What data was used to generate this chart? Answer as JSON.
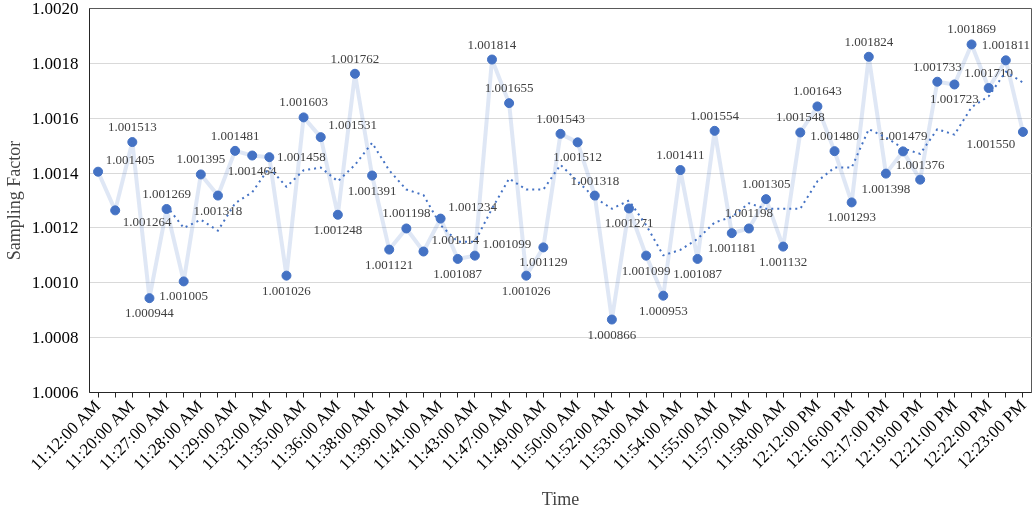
{
  "chart_data": {
    "type": "line",
    "xlabel": "Time",
    "ylabel": "Sampling Factor",
    "categories": [
      "11:12:00 AM",
      null,
      "11:20:00 AM",
      null,
      "11:27:00 AM",
      null,
      "11:28:00 AM",
      null,
      "11:29:00 AM",
      null,
      "11:32:00 AM",
      null,
      "11:35:00 AM",
      null,
      "11:36:00 AM",
      null,
      "11:38:00 AM",
      null,
      "11:39:00 AM",
      null,
      "11:41:00 AM",
      null,
      "11:43:00 AM",
      null,
      "11:47:00 AM",
      null,
      "11:49:00 AM",
      null,
      "11:50:00 AM",
      null,
      "11:52:00 AM",
      null,
      "11:53:00 AM",
      null,
      "11:54:00 AM",
      null,
      "11:55:00 AM",
      null,
      "11:57:00 AM",
      null,
      "11:58:00 AM",
      null,
      "12:12:00 PM",
      null,
      "12:16:00 PM",
      null,
      "12:17:00 PM",
      null,
      "12:19:00 PM",
      null,
      "12:21:00 PM",
      null,
      "12:22:00 PM",
      null,
      "12:23:00 PM"
    ],
    "series": [
      {
        "color": "#4472c4",
        "marker": "circle",
        "line_style": "solid",
        "values": [
          1.001405,
          1.001264,
          1.001513,
          1.000944,
          1.001269,
          1.001005,
          1.001395,
          1.001318,
          1.001481,
          1.001464,
          1.001458,
          1.001026,
          1.001603,
          1.001531,
          1.001248,
          1.001762,
          1.001391,
          1.001121,
          1.001198,
          1.001114,
          1.001234,
          1.001087,
          1.001099,
          1.001814,
          1.001655,
          1.001026,
          1.001129,
          1.001543,
          1.001512,
          1.001318,
          1.000866,
          1.001271,
          1.001099,
          1.000953,
          1.001411,
          1.001087,
          1.001554,
          1.001181,
          1.001198,
          1.001305,
          1.001132,
          1.001548,
          1.001643,
          1.00148,
          1.001293,
          1.001824,
          1.001398,
          1.001479,
          1.001376,
          1.001733,
          1.001723,
          1.001869,
          1.00171,
          1.001811,
          1.00155
        ],
        "value_labels": [
          "1.001405",
          "1.001264",
          "1.001513",
          "1.000944",
          "1.001269",
          "1.001005",
          "1.001395",
          "1.001318",
          "1.001481",
          "1.001464",
          "1.001458",
          "1.001026",
          "1.001603",
          "1.001531",
          "1.001248",
          "1.001762",
          "1.001391",
          "1.001121",
          "1.001198",
          "1.001114",
          "1.001234",
          "1.001087",
          "1.001099",
          "1.001814",
          "1.001655",
          "1.001026",
          "1.001129",
          "1.001543",
          "1.001512",
          "1.001318",
          "1.000866",
          "1.001271",
          "1.001099",
          "1.000953",
          "1.001411",
          "1.001087",
          "1.001554",
          "1.001181",
          "1.001198",
          "1.001305",
          "1.001132",
          "1.001548",
          "1.001643",
          "1.001480",
          "1.001293",
          "1.001824",
          "1.001398",
          "1.001479",
          "1.001376",
          "1.001733",
          "1.001723",
          "1.001869",
          "1.001710",
          "1.001811",
          "1.001550"
        ]
      },
      {
        "color": "#4472c4",
        "marker": "none",
        "line_style": "dotted",
        "values": [
          null,
          null,
          null,
          null,
          1.00128,
          1.0012,
          1.00123,
          1.00119,
          1.00129,
          1.00133,
          1.00142,
          1.00135,
          1.00141,
          1.00142,
          1.00137,
          1.00143,
          1.00151,
          1.00141,
          1.00134,
          1.00132,
          1.00121,
          1.00115,
          1.00115,
          1.00127,
          1.00138,
          1.00134,
          1.00134,
          1.00143,
          1.00137,
          1.00131,
          1.00127,
          1.0013,
          1.00121,
          1.0011,
          1.00112,
          1.00116,
          1.00122,
          1.00124,
          1.00129,
          1.00127,
          1.00127,
          1.00127,
          1.00137,
          1.00142,
          1.00142,
          1.00156,
          1.00153,
          1.00149,
          1.00147,
          1.00156,
          1.00154,
          1.00164,
          1.00168,
          1.00177,
          1.00173
        ]
      }
    ],
    "ylim": [
      1.0006,
      1.002
    ],
    "yticks": [
      1.0006,
      1.0008,
      {
        "value": 1.001,
        "label": "1.0010"
      },
      1.0012,
      1.0014,
      1.0016,
      1.0018,
      {
        "value": 1.002,
        "label": "1.0020"
      }
    ],
    "grid": "y"
  }
}
